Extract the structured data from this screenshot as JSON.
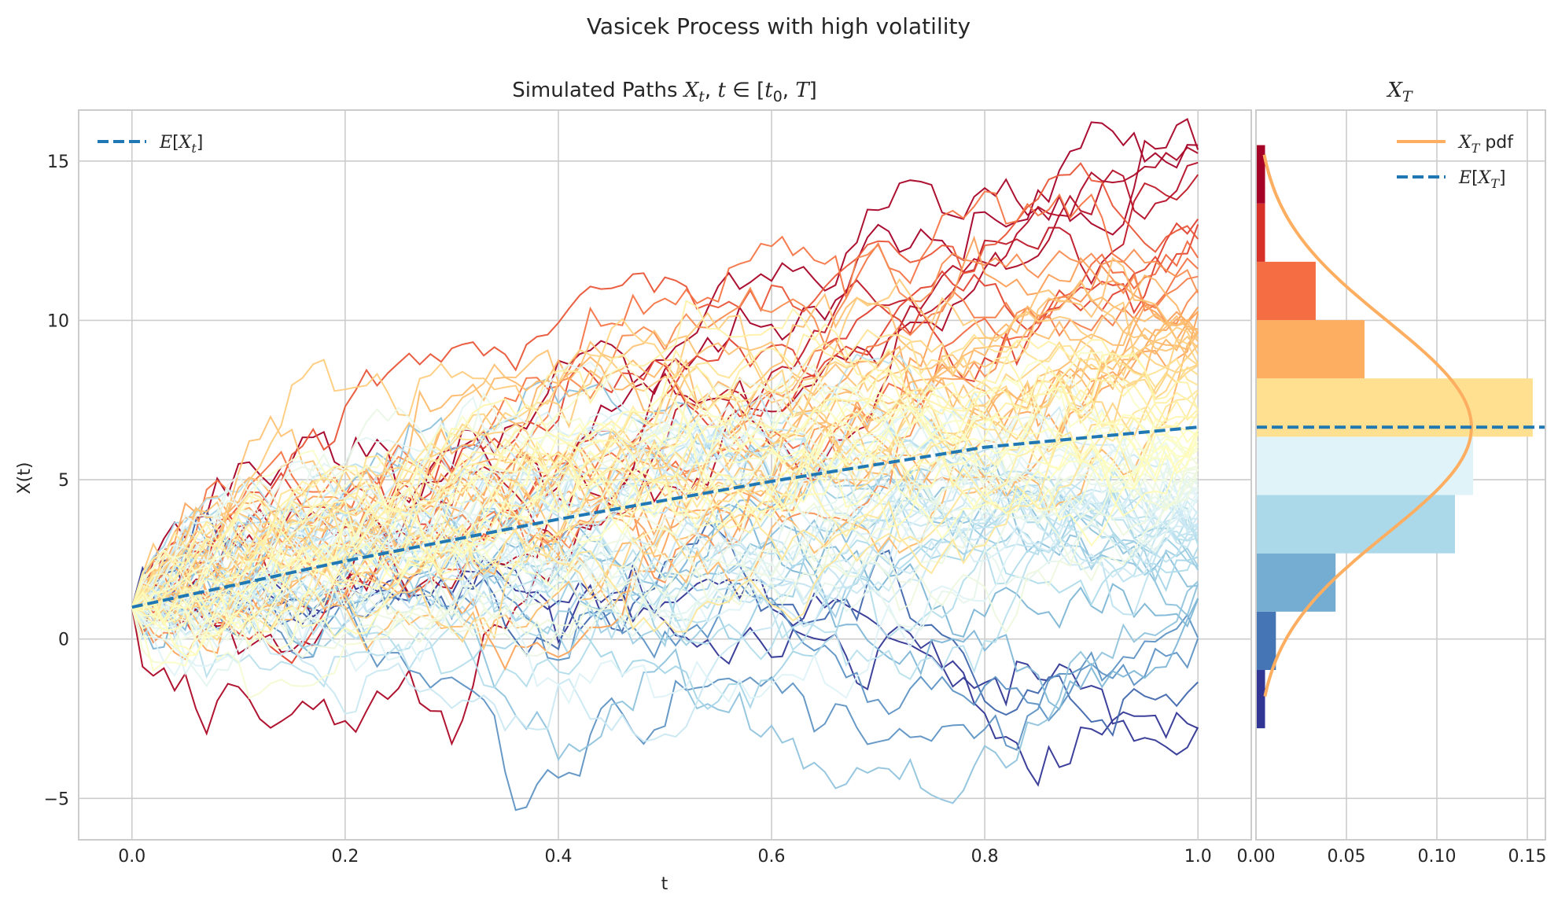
{
  "suptitle": "Vasicek Process with high volatility",
  "main": {
    "title": "Simulated Paths X_t, t ∈ [t0, T]",
    "xlabel": "t",
    "ylabel": "X(t)",
    "legend": [
      "E[X_t]"
    ]
  },
  "side": {
    "title": "X_T",
    "legend": [
      "X_T pdf",
      "E[X_T]"
    ]
  },
  "chart_data": [
    {
      "type": "line",
      "panel": "simulated-paths",
      "xlabel": "t",
      "ylabel": "X(t)",
      "xlim": [
        -0.05,
        1.05
      ],
      "ylim": [
        -6.3,
        16.6
      ],
      "xticks": [
        0.0,
        0.2,
        0.4,
        0.6,
        0.8,
        1.0
      ],
      "xtick_labels": [
        "0.0",
        "0.2",
        "0.4",
        "0.6",
        "0.8",
        "1.0"
      ],
      "yticks": [
        -5,
        0,
        5,
        10,
        15
      ],
      "ytick_labels": [
        "−5",
        "0",
        "5",
        "10",
        "15"
      ],
      "grid": true,
      "legend_position": "upper-left",
      "n_paths": 100,
      "n_steps": 100,
      "x0": 1.0,
      "expected_value": {
        "name": "E[X_t]",
        "x": [
          0.0,
          0.2,
          0.4,
          0.6,
          0.8,
          1.0
        ],
        "y": [
          1.0,
          2.45,
          3.76,
          4.95,
          6.02,
          6.65
        ],
        "color": "#1f77b4",
        "style": "dashed"
      },
      "final_value_range": [
        -2.8,
        15.5
      ],
      "colormap": "RdYlBu_r (colored by final value)"
    },
    {
      "type": "bar",
      "panel": "terminal-distribution",
      "orientation": "horizontal",
      "xlim": [
        0.0,
        0.16
      ],
      "xticks": [
        0.0,
        0.05,
        0.1,
        0.15
      ],
      "xtick_labels": [
        "0.00",
        "0.05",
        "0.10",
        "0.15"
      ],
      "grid": true,
      "legend_position": "upper-right",
      "bins": [
        {
          "y0": -2.8,
          "y1": -0.97,
          "density": 0.005,
          "color": "#313695"
        },
        {
          "y0": -0.97,
          "y1": 0.86,
          "density": 0.011,
          "color": "#4575b4"
        },
        {
          "y0": 0.86,
          "y1": 2.69,
          "density": 0.044,
          "color": "#74add1"
        },
        {
          "y0": 2.69,
          "y1": 4.52,
          "density": 0.11,
          "color": "#abd9e9"
        },
        {
          "y0": 4.52,
          "y1": 6.35,
          "density": 0.12,
          "color": "#e0f3f8"
        },
        {
          "y0": 6.35,
          "y1": 8.18,
          "density": 0.153,
          "color": "#fee090"
        },
        {
          "y0": 8.18,
          "y1": 10.01,
          "density": 0.06,
          "color": "#fdae61"
        },
        {
          "y0": 10.01,
          "y1": 11.84,
          "density": 0.033,
          "color": "#f46d43"
        },
        {
          "y0": 11.84,
          "y1": 13.67,
          "density": 0.005,
          "color": "#d73027"
        },
        {
          "y0": 13.67,
          "y1": 15.5,
          "density": 0.005,
          "color": "#a50026"
        }
      ],
      "pdf": {
        "name": "X_T pdf",
        "mean": 6.65,
        "std": 3.35,
        "y_range": [
          -1.8,
          15.2
        ],
        "color": "#fdae61"
      },
      "expected_value": {
        "name": "E[X_T]",
        "y": 6.65,
        "color": "#1f77b4",
        "style": "dashed"
      }
    }
  ]
}
